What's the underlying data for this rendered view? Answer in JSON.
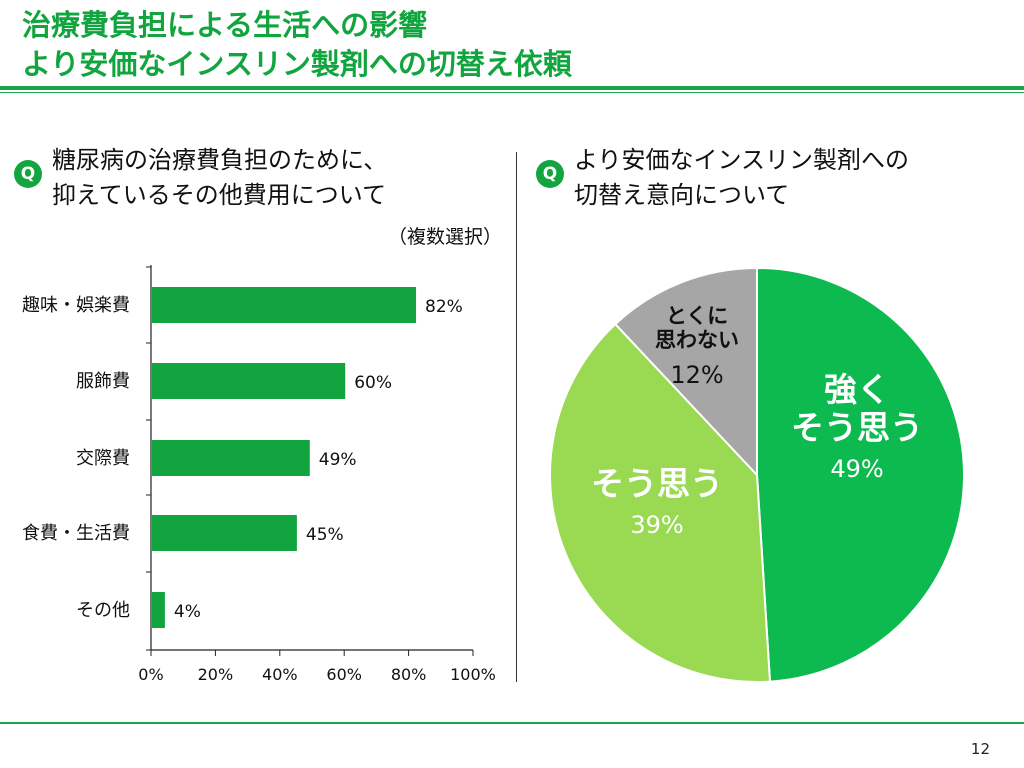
{
  "slide": {
    "title_line1": "治療費負担による生活への影響",
    "title_line2": "より安価なインスリン製剤への切替え依頼",
    "page_number": "12"
  },
  "left_panel": {
    "q_label": "Q",
    "question_line1": "糖尿病の治療費負担のために、",
    "question_line2": "抑えているその他費用について",
    "note": "（複数選択）"
  },
  "right_panel": {
    "q_label": "Q",
    "question_line1": "より安価なインスリン製剤への",
    "question_line2": "切替え意向について"
  },
  "colors": {
    "accent": "#1aa34a",
    "bar": "#12a53f",
    "pie_strong": "#0dba4f",
    "pie_agree": "#9ad952",
    "pie_no": "#a6a6a6"
  },
  "chart_data": [
    {
      "type": "bar",
      "orientation": "horizontal",
      "categories": [
        "趣味・娯楽費",
        "服飾費",
        "交際費",
        "食費・生活費",
        "その他"
      ],
      "values": [
        82,
        60,
        49,
        45,
        4
      ],
      "value_labels": [
        "82%",
        "60%",
        "49%",
        "45%",
        "4%"
      ],
      "xlim": [
        0,
        100
      ],
      "ticks": [
        0,
        20,
        40,
        60,
        80,
        100
      ],
      "tick_labels": [
        "0%",
        "20%",
        "40%",
        "60%",
        "80%",
        "100%"
      ],
      "grid": false
    },
    {
      "type": "pie",
      "slices": [
        {
          "label_lines": [
            "強く",
            "そう思う"
          ],
          "value": 49,
          "value_label": "49%",
          "color": "#0dba4f"
        },
        {
          "label_lines": [
            "そう思う"
          ],
          "value": 39,
          "value_label": "39%",
          "color": "#9ad952"
        },
        {
          "label_lines": [
            "とくに",
            "思わない"
          ],
          "value": 12,
          "value_label": "12%",
          "color": "#a6a6a6"
        }
      ]
    }
  ]
}
